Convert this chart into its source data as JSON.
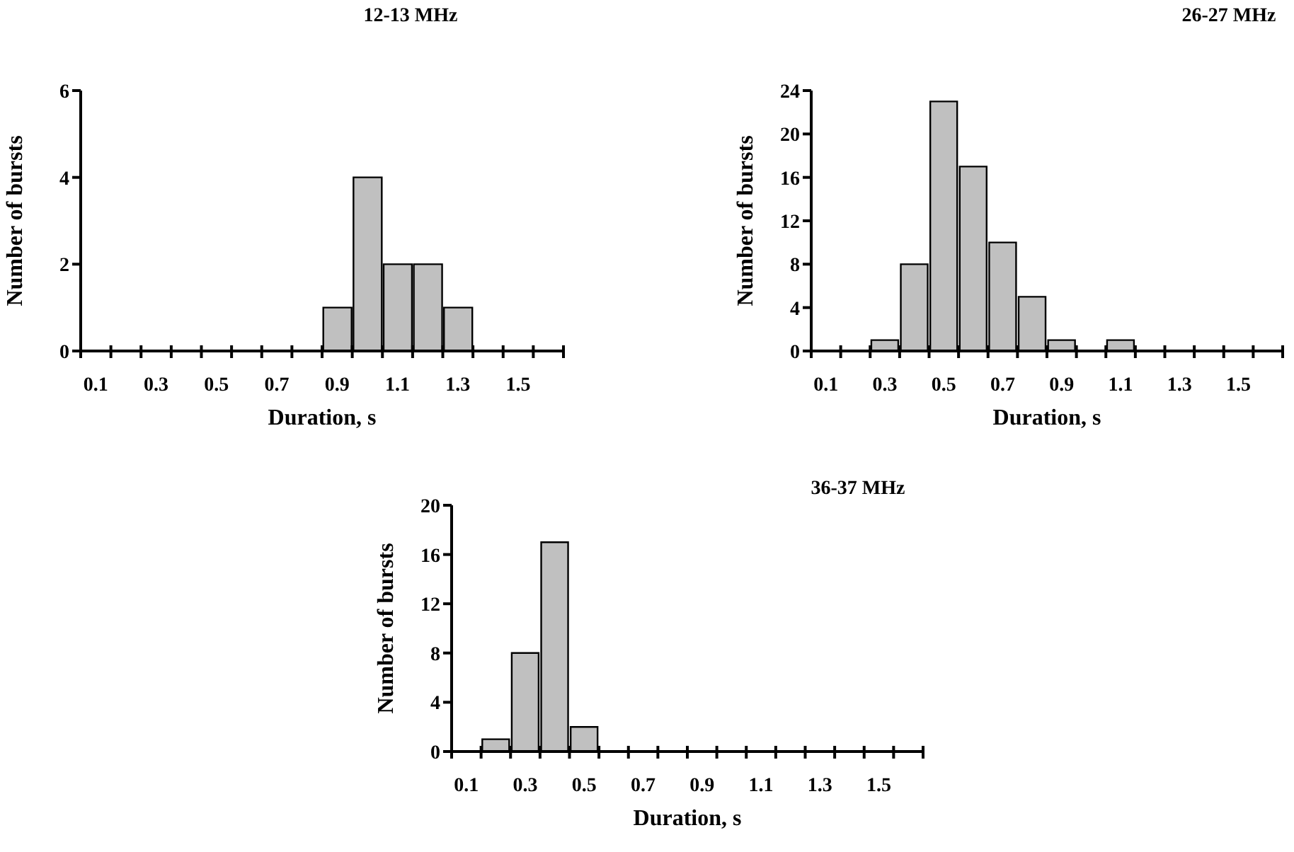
{
  "chart_data": [
    {
      "type": "bar",
      "title": "12-13 MHz",
      "xlabel": "Duration, s",
      "ylabel": "Number of bursts",
      "categories": [
        "0.1",
        null,
        "0.3",
        null,
        "0.5",
        null,
        "0.7",
        null,
        "0.9",
        null,
        "1.1",
        null,
        "1.3",
        null,
        "1.5",
        null
      ],
      "values": [
        0,
        0,
        0,
        0,
        0,
        0,
        0,
        0,
        1,
        4,
        2,
        2,
        1,
        0,
        0,
        0
      ],
      "color": "#c0c0c0",
      "ylim": [
        0,
        6
      ],
      "yticks": [
        0,
        2,
        4,
        6
      ]
    },
    {
      "type": "bar",
      "title": "26-27 MHz",
      "xlabel": "Duration, s",
      "ylabel": "Number of bursts",
      "categories": [
        "0.1",
        null,
        "0.3",
        null,
        "0.5",
        null,
        "0.7",
        null,
        "0.9",
        null,
        "1.1",
        null,
        "1.3",
        null,
        "1.5",
        null
      ],
      "values": [
        0,
        0,
        1,
        8,
        23,
        17,
        10,
        5,
        1,
        0,
        1,
        0,
        0,
        0,
        0,
        0
      ],
      "color": "#c0c0c0",
      "ylim": [
        0,
        24
      ],
      "yticks": [
        0,
        4,
        8,
        12,
        16,
        20,
        24
      ]
    },
    {
      "type": "bar",
      "title": "36-37 MHz",
      "xlabel": "Duration, s",
      "ylabel": "Number of bursts",
      "categories": [
        "0.1",
        null,
        "0.3",
        null,
        "0.5",
        null,
        "0.7",
        null,
        "0.9",
        null,
        "1.1",
        null,
        "1.3",
        null,
        "1.5",
        null
      ],
      "values": [
        0,
        1,
        8,
        17,
        2,
        0,
        0,
        0,
        0,
        0,
        0,
        0,
        0,
        0,
        0,
        0
      ],
      "color": "#c0c0c0",
      "ylim": [
        0,
        20
      ],
      "yticks": [
        0,
        4,
        8,
        12,
        16,
        20
      ]
    }
  ]
}
